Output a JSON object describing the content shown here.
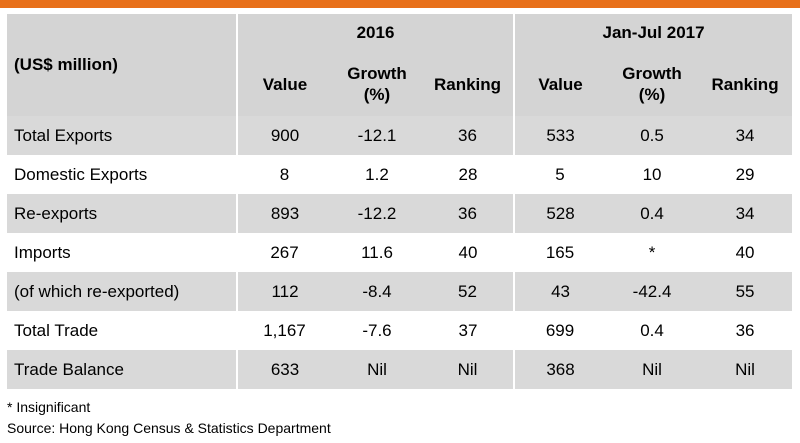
{
  "header": {
    "units_label": "(US$ million)",
    "period_1": "2016",
    "period_2": "Jan-Jul 2017",
    "columns": [
      {
        "line1": "Value",
        "line2": ""
      },
      {
        "line1": "Growth",
        "line2": "(%)"
      },
      {
        "line1": "Ranking",
        "line2": ""
      },
      {
        "line1": "Value",
        "line2": ""
      },
      {
        "line1": "Growth",
        "line2": "(%)"
      },
      {
        "line1": "Ranking",
        "line2": ""
      }
    ]
  },
  "rows": [
    {
      "label": "Total Exports",
      "cells": [
        "900",
        "-12.1",
        "36",
        "533",
        "0.5",
        "34"
      ]
    },
    {
      "label": "Domestic Exports",
      "cells": [
        "8",
        "1.2",
        "28",
        "5",
        "10",
        "29"
      ]
    },
    {
      "label": "Re-exports",
      "cells": [
        "893",
        "-12.2",
        "36",
        "528",
        "0.4",
        "34"
      ]
    },
    {
      "label": "Imports",
      "cells": [
        "267",
        "11.6",
        "40",
        "165",
        "*",
        "40"
      ]
    },
    {
      "label": "(of which re-exported)",
      "cells": [
        "112",
        "-8.4",
        "52",
        "43",
        "-42.4",
        "55"
      ]
    },
    {
      "label": "Total Trade",
      "cells": [
        "1,167",
        "-7.6",
        "37",
        "699",
        "0.4",
        "36"
      ]
    },
    {
      "label": "Trade Balance",
      "cells": [
        "633",
        "Nil",
        "Nil",
        "368",
        "Nil",
        "Nil"
      ]
    }
  ],
  "footnotes": {
    "asterisk": "* Insignificant",
    "source": "Source: Hong Kong Census & Statistics Department"
  },
  "colors": {
    "accent_rule": "#e8701a",
    "header_fill": "#d4d4d4",
    "shaded_row_fill": "#d9d9d9"
  }
}
